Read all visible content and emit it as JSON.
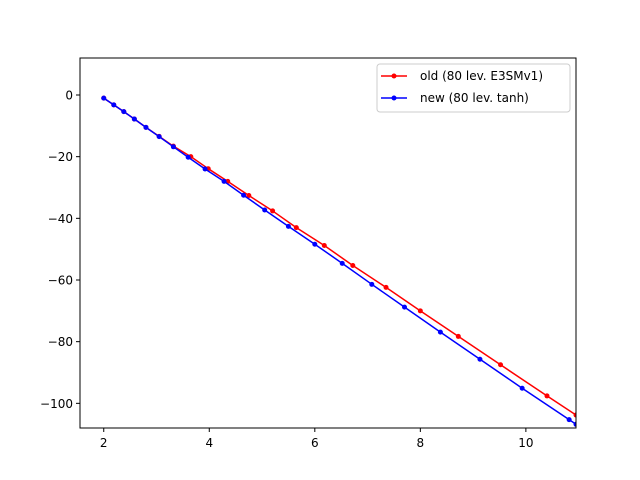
{
  "chart_data": {
    "type": "line",
    "title": "",
    "xlabel": "",
    "ylabel": "",
    "xlim": [
      1.55,
      10.95
    ],
    "ylim": [
      -108,
      12
    ],
    "xticks": [
      2,
      4,
      6,
      8,
      10
    ],
    "yticks": [
      0,
      -20,
      -40,
      -60,
      -80,
      -100
    ],
    "grid": false,
    "legend": "top-right",
    "series": [
      {
        "name": "old (80 lev. E3SMv1)",
        "color": "#ff0000",
        "points": [
          [
            2.0,
            -1.0
          ],
          [
            2.19,
            -3.2
          ],
          [
            2.38,
            -5.4
          ],
          [
            2.58,
            -7.8
          ],
          [
            2.8,
            -10.5
          ],
          [
            3.05,
            -13.4
          ],
          [
            3.32,
            -16.6
          ],
          [
            3.65,
            -20.0
          ],
          [
            3.98,
            -23.9
          ],
          [
            4.35,
            -28.0
          ],
          [
            4.75,
            -32.6
          ],
          [
            5.2,
            -37.6
          ],
          [
            5.65,
            -43.0
          ],
          [
            6.18,
            -48.8
          ],
          [
            6.72,
            -55.3
          ],
          [
            7.35,
            -62.4
          ],
          [
            8.0,
            -70.0
          ],
          [
            8.72,
            -78.3
          ],
          [
            9.52,
            -87.5
          ],
          [
            10.4,
            -97.6
          ],
          [
            10.95,
            -103.8
          ]
        ]
      },
      {
        "name": "new (80 lev. tanh)",
        "color": "#0000ff",
        "points": [
          [
            2.0,
            -1.0
          ],
          [
            2.19,
            -3.2
          ],
          [
            2.38,
            -5.4
          ],
          [
            2.58,
            -7.8
          ],
          [
            2.8,
            -10.5
          ],
          [
            3.05,
            -13.5
          ],
          [
            3.32,
            -16.8
          ],
          [
            3.6,
            -20.2
          ],
          [
            3.92,
            -24.0
          ],
          [
            4.28,
            -28.0
          ],
          [
            4.65,
            -32.5
          ],
          [
            5.05,
            -37.3
          ],
          [
            5.5,
            -42.6
          ],
          [
            6.0,
            -48.4
          ],
          [
            6.52,
            -54.6
          ],
          [
            7.08,
            -61.4
          ],
          [
            7.7,
            -68.8
          ],
          [
            8.38,
            -76.9
          ],
          [
            9.13,
            -85.7
          ],
          [
            9.93,
            -95.1
          ],
          [
            10.82,
            -105.3
          ],
          [
            10.95,
            -106.8
          ]
        ]
      }
    ]
  }
}
